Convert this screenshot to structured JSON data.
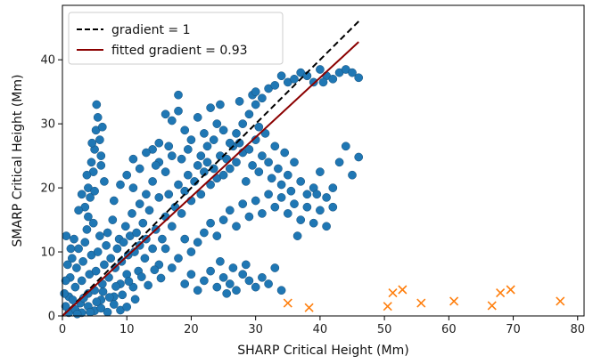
{
  "chart_data": {
    "type": "scatter",
    "xlabel": "SHARP Critical Height (Mm)",
    "ylabel": "SMARP Critical Height (Mm)",
    "xlim": [
      0,
      81
    ],
    "ylim": [
      0,
      48.5
    ],
    "xticks": [
      "0",
      "10",
      "20",
      "30",
      "40",
      "50",
      "60",
      "70",
      "80"
    ],
    "yticks": [
      "0",
      "10",
      "20",
      "30",
      "40"
    ],
    "grid": false,
    "legend_position": "top-left",
    "lines": [
      {
        "name": "gradient = 1",
        "slope": 1.0,
        "x_range": [
          0,
          46
        ],
        "color": "#000000",
        "style": "dashed"
      },
      {
        "name": "fitted gradient = 0.93",
        "slope": 0.93,
        "x_range": [
          0,
          46
        ],
        "color": "#8b0000",
        "style": "solid"
      }
    ],
    "series": [
      {
        "marker": "circle",
        "color": "#1f77b4",
        "points": [
          [
            0.5,
            1.5
          ],
          [
            1.0,
            3.0
          ],
          [
            1.2,
            6.0
          ],
          [
            1.5,
            9.0
          ],
          [
            1.8,
            12.0
          ],
          [
            2.0,
            4.5
          ],
          [
            2.2,
            7.5
          ],
          [
            2.5,
            10.5
          ],
          [
            2.8,
            2.0
          ],
          [
            3.0,
            5.5
          ],
          [
            3.2,
            8.5
          ],
          [
            3.5,
            11.5
          ],
          [
            3.8,
            13.5
          ],
          [
            4.0,
            3.5
          ],
          [
            4.2,
            6.5
          ],
          [
            4.5,
            9.5
          ],
          [
            4.8,
            14.5
          ],
          [
            5.0,
            4.0
          ],
          [
            5.2,
            7.0
          ],
          [
            5.5,
            10.0
          ],
          [
            5.8,
            12.5
          ],
          [
            6.0,
            2.5
          ],
          [
            6.2,
            5.0
          ],
          [
            6.5,
            8.0
          ],
          [
            6.8,
            11.0
          ],
          [
            7.0,
            13.0
          ],
          [
            7.2,
            6.0
          ],
          [
            7.5,
            9.0
          ],
          [
            7.8,
            15.0
          ],
          [
            8.0,
            3.0
          ],
          [
            8.2,
            7.5
          ],
          [
            8.5,
            10.5
          ],
          [
            8.8,
            12.0
          ],
          [
            9.0,
            5.0
          ],
          [
            9.2,
            8.5
          ],
          [
            9.5,
            11.5
          ],
          [
            9.8,
            14.0
          ],
          [
            10.0,
            6.5
          ],
          [
            10.2,
            9.5
          ],
          [
            10.5,
            12.5
          ],
          [
            10.8,
            16.0
          ],
          [
            11.0,
            4.5
          ],
          [
            11.2,
            10.0
          ],
          [
            11.5,
            13.0
          ],
          [
            11.8,
            7.0
          ],
          [
            12.0,
            11.0
          ],
          [
            12.5,
            14.5
          ],
          [
            12.8,
            9.0
          ],
          [
            13.0,
            12.0
          ],
          [
            13.5,
            16.5
          ],
          [
            14.0,
            10.5
          ],
          [
            14.5,
            13.5
          ],
          [
            15.0,
            18.5
          ],
          [
            15.5,
            12.0
          ],
          [
            16.0,
            15.5
          ],
          [
            16.5,
            19.0
          ],
          [
            17.0,
            14.0
          ],
          [
            17.5,
            17.0
          ],
          [
            18.0,
            20.5
          ],
          [
            18.5,
            16.0
          ],
          [
            19.0,
            19.5
          ],
          [
            19.5,
            22.0
          ],
          [
            20.0,
            18.0
          ],
          [
            20.5,
            21.0
          ],
          [
            21.0,
            23.5
          ],
          [
            21.5,
            19.0
          ],
          [
            22.0,
            22.5
          ],
          [
            22.5,
            24.0
          ],
          [
            23.0,
            20.5
          ],
          [
            23.5,
            23.0
          ],
          [
            24.0,
            21.5
          ],
          [
            24.5,
            25.0
          ],
          [
            25.0,
            22.0
          ],
          [
            25.5,
            24.5
          ],
          [
            26.0,
            23.0
          ],
          [
            26.5,
            26.5
          ],
          [
            27.0,
            24.0
          ],
          [
            27.5,
            27.0
          ],
          [
            28.0,
            25.5
          ],
          [
            28.5,
            21.0
          ],
          [
            29.0,
            26.0
          ],
          [
            29.5,
            23.5
          ],
          [
            30.0,
            27.5
          ],
          [
            30.5,
            22.5
          ],
          [
            31.0,
            25.0
          ],
          [
            31.5,
            28.5
          ],
          [
            32.0,
            24.0
          ],
          [
            32.5,
            21.5
          ],
          [
            33.0,
            26.5
          ],
          [
            33.5,
            23.0
          ],
          [
            34.0,
            20.5
          ],
          [
            34.5,
            25.5
          ],
          [
            35.0,
            22.0
          ],
          [
            35.5,
            19.5
          ],
          [
            36.0,
            24.0
          ],
          [
            37.0,
            21.0
          ],
          [
            38.0,
            19.0
          ],
          [
            39.0,
            20.0
          ],
          [
            40.0,
            22.5
          ],
          [
            41.0,
            18.5
          ],
          [
            42.0,
            20.0
          ],
          [
            43.0,
            24.0
          ],
          [
            44.0,
            26.5
          ],
          [
            45.0,
            22.0
          ],
          [
            46.0,
            24.8
          ],
          [
            28.0,
            30.0
          ],
          [
            29.0,
            31.5
          ],
          [
            30.0,
            33.0
          ],
          [
            31.0,
            34.0
          ],
          [
            32.0,
            35.5
          ],
          [
            33.0,
            36.0
          ],
          [
            34.0,
            37.5
          ],
          [
            35.0,
            36.5
          ],
          [
            36.0,
            37.0
          ],
          [
            37.0,
            38.0
          ],
          [
            38.0,
            37.5
          ],
          [
            39.0,
            36.5
          ],
          [
            40.0,
            38.5
          ],
          [
            41.0,
            37.5
          ],
          [
            42.0,
            37.0
          ],
          [
            43.0,
            38.0
          ],
          [
            44.0,
            38.5
          ],
          [
            45.0,
            38.0
          ],
          [
            46.0,
            37.2
          ],
          [
            40.5,
            36.5
          ],
          [
            30.5,
            29.5
          ],
          [
            27.0,
            28.5
          ],
          [
            29.5,
            34.5
          ],
          [
            26.0,
            27.0
          ],
          [
            25.0,
            29.0
          ],
          [
            24.0,
            30.0
          ],
          [
            22.0,
            28.5
          ],
          [
            20.0,
            27.5
          ],
          [
            19.0,
            29.0
          ],
          [
            17.0,
            30.5
          ],
          [
            16.0,
            31.5
          ],
          [
            18.0,
            32.0
          ],
          [
            15.0,
            27.0
          ],
          [
            14.0,
            26.0
          ],
          [
            18.0,
            34.5
          ],
          [
            21.0,
            31.0
          ],
          [
            23.0,
            32.5
          ],
          [
            24.5,
            33.0
          ],
          [
            27.5,
            33.5
          ],
          [
            30.0,
            35.0
          ],
          [
            5.0,
            26.0
          ],
          [
            4.5,
            24.0
          ],
          [
            5.2,
            29.0
          ],
          [
            4.8,
            22.5
          ],
          [
            5.5,
            31.0
          ],
          [
            4.0,
            20.0
          ],
          [
            5.8,
            27.5
          ],
          [
            6.0,
            23.5
          ],
          [
            4.3,
            18.5
          ],
          [
            3.5,
            17.0
          ],
          [
            5.0,
            19.5
          ],
          [
            6.5,
            21.0
          ],
          [
            3.0,
            19.0
          ],
          [
            4.0,
            15.5
          ],
          [
            2.5,
            16.5
          ],
          [
            3.8,
            22.0
          ],
          [
            6.0,
            25.0
          ],
          [
            5.3,
            33.0
          ],
          [
            4.6,
            27.0
          ],
          [
            6.2,
            29.5
          ],
          [
            8.0,
            18.0
          ],
          [
            9.0,
            20.5
          ],
          [
            10.0,
            22.0
          ],
          [
            11.0,
            24.5
          ],
          [
            12.0,
            23.0
          ],
          [
            13.0,
            25.5
          ],
          [
            14.0,
            21.0
          ],
          [
            15.0,
            24.0
          ],
          [
            16.0,
            22.5
          ],
          [
            17.0,
            25.0
          ],
          [
            13.0,
            19.0
          ],
          [
            12.0,
            17.5
          ],
          [
            11.0,
            20.0
          ],
          [
            14.5,
            23.5
          ],
          [
            16.5,
            26.5
          ],
          [
            18.5,
            24.5
          ],
          [
            19.5,
            26.0
          ],
          [
            21.5,
            25.0
          ],
          [
            22.5,
            26.5
          ],
          [
            23.5,
            27.5
          ],
          [
            21.0,
            4.0
          ],
          [
            22.0,
            5.5
          ],
          [
            23.0,
            7.0
          ],
          [
            24.0,
            4.5
          ],
          [
            25.0,
            6.0
          ],
          [
            26.0,
            5.0
          ],
          [
            27.0,
            4.0
          ],
          [
            28.0,
            6.5
          ],
          [
            29.0,
            5.5
          ],
          [
            30.0,
            4.5
          ],
          [
            31.0,
            6.0
          ],
          [
            32.0,
            5.0
          ],
          [
            33.0,
            7.5
          ],
          [
            34.0,
            4.0
          ],
          [
            24.5,
            8.5
          ],
          [
            26.5,
            7.5
          ],
          [
            28.5,
            8.0
          ],
          [
            20.0,
            6.5
          ],
          [
            19.0,
            5.0
          ],
          [
            25.5,
            3.5
          ],
          [
            18.0,
            9.0
          ],
          [
            17.0,
            7.5
          ],
          [
            16.0,
            10.5
          ],
          [
            15.0,
            8.0
          ],
          [
            19.0,
            12.0
          ],
          [
            20.0,
            10.0
          ],
          [
            21.0,
            11.5
          ],
          [
            22.0,
            13.0
          ],
          [
            23.0,
            14.5
          ],
          [
            24.0,
            12.5
          ],
          [
            25.0,
            15.0
          ],
          [
            26.0,
            16.5
          ],
          [
            27.0,
            14.0
          ],
          [
            28.0,
            17.5
          ],
          [
            29.0,
            15.5
          ],
          [
            30.0,
            18.0
          ],
          [
            31.0,
            16.0
          ],
          [
            32.0,
            19.0
          ],
          [
            33.0,
            17.0
          ],
          [
            34.0,
            18.5
          ],
          [
            35.0,
            16.0
          ],
          [
            36.0,
            17.5
          ],
          [
            37.0,
            15.0
          ],
          [
            38.0,
            17.0
          ],
          [
            39.0,
            14.5
          ],
          [
            40.0,
            16.5
          ],
          [
            41.0,
            14.0
          ],
          [
            36.5,
            12.5
          ],
          [
            39.5,
            19.0
          ],
          [
            42.0,
            17.0
          ],
          [
            1.0,
            0.5
          ],
          [
            2.0,
            1.0
          ],
          [
            3.0,
            0.5
          ],
          [
            4.0,
            1.5
          ],
          [
            5.0,
            0.8
          ],
          [
            6.0,
            1.2
          ],
          [
            7.0,
            0.6
          ],
          [
            8.0,
            1.8
          ],
          [
            9.0,
            0.9
          ],
          [
            10.0,
            1.4
          ],
          [
            0.5,
            5.5
          ],
          [
            0.8,
            8.0
          ],
          [
            1.3,
            10.5
          ],
          [
            0.3,
            3.5
          ],
          [
            0.6,
            12.5
          ],
          [
            1.6,
            2.5
          ],
          [
            2.3,
            0.3
          ],
          [
            3.3,
            2.8
          ],
          [
            4.3,
            0.6
          ],
          [
            5.3,
            2.2
          ],
          [
            6.3,
            3.8
          ],
          [
            7.3,
            2.9
          ],
          [
            8.3,
            4.6
          ],
          [
            9.3,
            3.3
          ],
          [
            10.3,
            5.4
          ],
          [
            11.3,
            2.6
          ],
          [
            12.3,
            6.1
          ],
          [
            13.3,
            4.8
          ],
          [
            14.3,
            7.2
          ],
          [
            15.3,
            5.9
          ]
        ]
      },
      {
        "marker": "x",
        "color": "#ff7f0e",
        "points": [
          [
            35.0,
            2.0
          ],
          [
            38.3,
            1.3
          ],
          [
            50.5,
            1.5
          ],
          [
            51.3,
            3.6
          ],
          [
            52.8,
            4.1
          ],
          [
            55.7,
            2.0
          ],
          [
            60.8,
            2.3
          ],
          [
            66.7,
            1.6
          ],
          [
            68.0,
            3.6
          ],
          [
            69.6,
            4.1
          ],
          [
            77.3,
            2.3
          ]
        ]
      }
    ]
  }
}
